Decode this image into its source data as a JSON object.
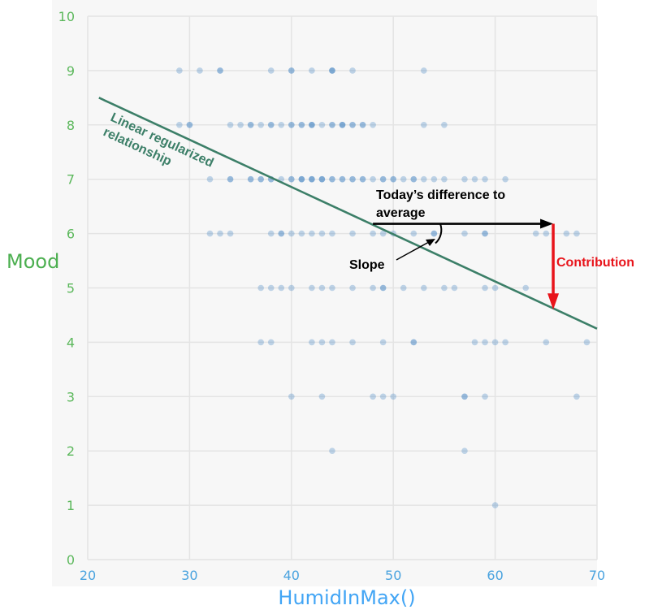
{
  "chart_data": {
    "type": "scatter",
    "xlabel": "HumidInMax()",
    "ylabel": "Mood",
    "xlim": [
      20,
      70
    ],
    "ylim": [
      0,
      10
    ],
    "x_ticks": [
      "20",
      "30",
      "40",
      "50",
      "60",
      "70"
    ],
    "y_ticks": [
      "0",
      "1",
      "2",
      "3",
      "4",
      "5",
      "6",
      "7",
      "8",
      "9",
      "10"
    ],
    "grid": true,
    "points": [
      [
        29,
        9
      ],
      [
        31,
        9
      ],
      [
        33,
        9
      ],
      [
        33,
        9
      ],
      [
        38,
        9
      ],
      [
        40,
        9
      ],
      [
        40,
        9
      ],
      [
        42,
        9
      ],
      [
        44,
        9
      ],
      [
        44,
        9
      ],
      [
        44,
        9
      ],
      [
        46,
        9
      ],
      [
        53,
        9
      ],
      [
        29,
        8
      ],
      [
        30,
        8
      ],
      [
        30,
        8
      ],
      [
        34,
        8
      ],
      [
        35,
        8
      ],
      [
        36,
        8
      ],
      [
        36,
        8
      ],
      [
        37,
        8
      ],
      [
        38,
        8
      ],
      [
        38,
        8
      ],
      [
        39,
        8
      ],
      [
        40,
        8
      ],
      [
        40,
        8
      ],
      [
        41,
        8
      ],
      [
        41,
        8
      ],
      [
        42,
        8
      ],
      [
        42,
        8
      ],
      [
        42,
        8
      ],
      [
        43,
        8
      ],
      [
        44,
        8
      ],
      [
        44,
        8
      ],
      [
        45,
        8
      ],
      [
        45,
        8
      ],
      [
        45,
        8
      ],
      [
        46,
        8
      ],
      [
        46,
        8
      ],
      [
        47,
        8
      ],
      [
        47,
        8
      ],
      [
        48,
        8
      ],
      [
        53,
        8
      ],
      [
        55,
        8
      ],
      [
        32,
        7
      ],
      [
        34,
        7
      ],
      [
        34,
        7
      ],
      [
        36,
        7
      ],
      [
        36,
        7
      ],
      [
        37,
        7
      ],
      [
        37,
        7
      ],
      [
        38,
        7
      ],
      [
        38,
        7
      ],
      [
        39,
        7
      ],
      [
        40,
        7
      ],
      [
        40,
        7
      ],
      [
        41,
        7
      ],
      [
        41,
        7
      ],
      [
        41,
        7
      ],
      [
        42,
        7
      ],
      [
        42,
        7
      ],
      [
        42,
        7
      ],
      [
        43,
        7
      ],
      [
        43,
        7
      ],
      [
        43,
        7
      ],
      [
        44,
        7
      ],
      [
        44,
        7
      ],
      [
        45,
        7
      ],
      [
        45,
        7
      ],
      [
        46,
        7
      ],
      [
        46,
        7
      ],
      [
        47,
        7
      ],
      [
        47,
        7
      ],
      [
        48,
        7
      ],
      [
        49,
        7
      ],
      [
        49,
        7
      ],
      [
        50,
        7
      ],
      [
        50,
        7
      ],
      [
        51,
        7
      ],
      [
        52,
        7
      ],
      [
        52,
        7
      ],
      [
        53,
        7
      ],
      [
        54,
        7
      ],
      [
        55,
        7
      ],
      [
        57,
        7
      ],
      [
        58,
        7
      ],
      [
        59,
        7
      ],
      [
        61,
        7
      ],
      [
        32,
        6
      ],
      [
        33,
        6
      ],
      [
        34,
        6
      ],
      [
        38,
        6
      ],
      [
        39,
        6
      ],
      [
        39,
        6
      ],
      [
        40,
        6
      ],
      [
        41,
        6
      ],
      [
        42,
        6
      ],
      [
        43,
        6
      ],
      [
        44,
        6
      ],
      [
        46,
        6
      ],
      [
        48,
        6
      ],
      [
        49,
        6
      ],
      [
        50,
        6
      ],
      [
        52,
        6
      ],
      [
        54,
        6
      ],
      [
        54,
        6
      ],
      [
        57,
        6
      ],
      [
        59,
        6
      ],
      [
        59,
        6
      ],
      [
        64,
        6
      ],
      [
        65,
        6
      ],
      [
        67,
        6
      ],
      [
        68,
        6
      ],
      [
        37,
        5
      ],
      [
        38,
        5
      ],
      [
        39,
        5
      ],
      [
        40,
        5
      ],
      [
        42,
        5
      ],
      [
        43,
        5
      ],
      [
        44,
        5
      ],
      [
        46,
        5
      ],
      [
        48,
        5
      ],
      [
        49,
        5
      ],
      [
        49,
        5
      ],
      [
        51,
        5
      ],
      [
        53,
        5
      ],
      [
        55,
        5
      ],
      [
        56,
        5
      ],
      [
        59,
        5
      ],
      [
        60,
        5
      ],
      [
        63,
        5
      ],
      [
        37,
        4
      ],
      [
        38,
        4
      ],
      [
        42,
        4
      ],
      [
        43,
        4
      ],
      [
        44,
        4
      ],
      [
        46,
        4
      ],
      [
        49,
        4
      ],
      [
        52,
        4
      ],
      [
        52,
        4
      ],
      [
        58,
        4
      ],
      [
        59,
        4
      ],
      [
        60,
        4
      ],
      [
        61,
        4
      ],
      [
        65,
        4
      ],
      [
        69,
        4
      ],
      [
        40,
        3
      ],
      [
        43,
        3
      ],
      [
        48,
        3
      ],
      [
        49,
        3
      ],
      [
        50,
        3
      ],
      [
        57,
        3
      ],
      [
        57,
        3
      ],
      [
        59,
        3
      ],
      [
        68,
        3
      ],
      [
        44,
        2
      ],
      [
        57,
        2
      ],
      [
        60,
        1
      ]
    ],
    "point_color": "#4f8cc6",
    "regression_line": {
      "x1": 21.1,
      "y1": 8.5,
      "x2": 70,
      "y2": 4.25,
      "color": "#3c7f68"
    }
  },
  "annotations": {
    "line_label": "Linear regularized relationship",
    "line_label_1": "Linear regularized",
    "line_label_2": "relationship",
    "difference_label_1": "Today’s difference to",
    "difference_label_2": "average",
    "slope_label": "Slope",
    "contribution_label": "Contribution",
    "difference_arrow": {
      "x_from": 48,
      "x_to": 65.7,
      "y": 6.18,
      "color": "#000000"
    },
    "contribution_arrow": {
      "x": 65.7,
      "y_from": 6.18,
      "y_to": 4.6,
      "color": "#e8141b"
    }
  },
  "colors": {
    "y_tick": "#5cb85c",
    "x_tick": "#4aa3df",
    "ylabel": "#4caf50",
    "xlabel": "#42a5f5",
    "grid": "#e4e4e4",
    "panel_bg": "#f7f7f7"
  }
}
